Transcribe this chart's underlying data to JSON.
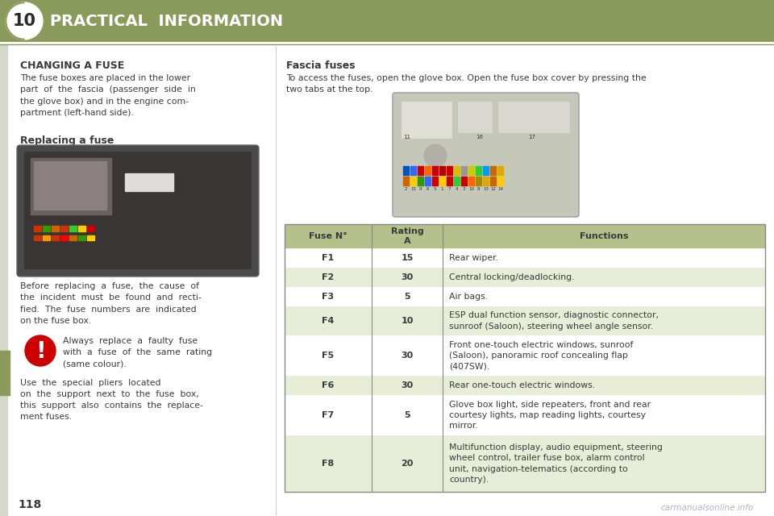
{
  "page_number": "118",
  "chapter_number": "10",
  "chapter_title": "PRACTICAL  INFORMATION",
  "header_bg": "#8a9a5b",
  "header_text_color": "#ffffff",
  "page_bg": "#ffffff",
  "left_bar_color": "#8a9a5b",
  "section_title": "CHANGING A FUSE",
  "section_title_color": "#3a3a3a",
  "body_text_color": "#3a3a3a",
  "body_text": "The fuse boxes are placed in the lower\npart  of  the  fascia  (passenger  side  in\nthe glove box) and in the engine com-\npartment (left-hand side).",
  "replacing_title": "Replacing a fuse",
  "before_text": "Before  replacing  a  fuse,  the  cause  of\nthe  incident  must  be  found  and  recti-\nfied.  The  fuse  numbers  are  indicated\non the fuse box.",
  "warning_text1": "Always  replace  a  faulty  fuse\nwith  a  fuse  of  the  same  rating\n(same colour).",
  "warning_text2": "Use  the  special  pliers  located\non  the  support  next  to  the  fuse  box,\nthis  support  also  contains  the  replace-\nment fuses.",
  "fascia_title": "Fascia fuses",
  "fascia_text": "To access the fuses, open the glove box. Open the fuse box cover by pressing the\ntwo tabs at the top.",
  "table_header_bg": "#b5c08a",
  "table_row_bg1": "#ffffff",
  "table_row_bg2": "#e8edd8",
  "table_header_text": "#3a3a3a",
  "table_col1": "Fuse N°",
  "table_col2": "Rating\nA",
  "table_col3": "Functions",
  "fuses": [
    {
      "fuse": "F1",
      "rating": "15",
      "function": "Rear wiper."
    },
    {
      "fuse": "F2",
      "rating": "30",
      "function": "Central locking/deadlocking."
    },
    {
      "fuse": "F3",
      "rating": "5",
      "function": "Air bags."
    },
    {
      "fuse": "F4",
      "rating": "10",
      "function": "ESP dual function sensor, diagnostic connector,\nsunroof (Saloon), steering wheel angle sensor."
    },
    {
      "fuse": "F5",
      "rating": "30",
      "function": "Front one-touch electric windows, sunroof\n(Saloon), panoramic roof concealing flap\n(407SW)."
    },
    {
      "fuse": "F6",
      "rating": "30",
      "function": "Rear one-touch electric windows."
    },
    {
      "fuse": "F7",
      "rating": "5",
      "function": "Glove box light, side repeaters, front and rear\ncourtesy lights, map reading lights, courtesy\nmirror."
    },
    {
      "fuse": "F8",
      "rating": "20",
      "function": "Multifunction display, audio equipment, steering\nwheel control, trailer fuse box, alarm control\nunit, navigation-telematics (according to\ncountry)."
    }
  ],
  "watermark": "carmanualsonline.info",
  "fuse_colors_top": [
    "#0055bb",
    "#3366ff",
    "#cc0000",
    "#ff6600",
    "#cc0000",
    "#bb0000",
    "#cc0000",
    "#ddbb00",
    "#999999",
    "#cccc00",
    "#33cc33",
    "#0099ff",
    "#cc6600",
    "#ddaa00"
  ],
  "fuse_colors_bot": [
    "#cc6600",
    "#ffcc00",
    "#339900",
    "#3366ff",
    "#cc0000",
    "#ffcc00",
    "#cc0000",
    "#33cc33",
    "#cc0000",
    "#ff6600",
    "#aa8800",
    "#ddaa00",
    "#cc6600",
    "#ffcc00"
  ]
}
